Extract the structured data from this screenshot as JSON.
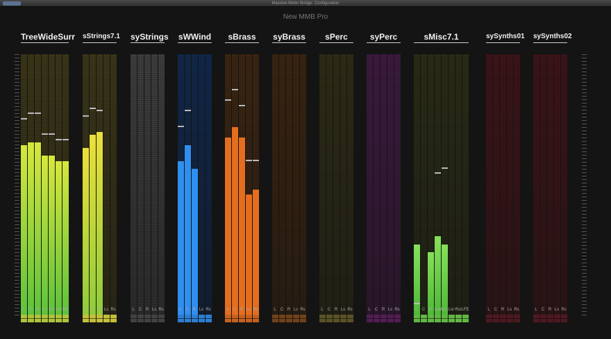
{
  "window": {
    "title": "Massive Meter Bridge: Configuration"
  },
  "app_title": "New MMB Pro",
  "groups": [
    {
      "label": "TreeWideSurr",
      "color": "#c8e040",
      "bgTint": "#3b3618",
      "dim": false,
      "channels": [
        {
          "name": "L",
          "level": 0.65,
          "peak": 0.75
        },
        {
          "name": "C",
          "level": 0.66,
          "peak": 0.77
        },
        {
          "name": "R",
          "level": 0.66,
          "peak": 0.77
        },
        {
          "name": "Ls",
          "level": 0.61,
          "peak": 0.69
        },
        {
          "name": "Rs",
          "level": 0.61,
          "peak": 0.69
        },
        {
          "name": "Lsr",
          "level": 0.59,
          "peak": 0.67
        },
        {
          "name": "Rsr",
          "level": 0.59,
          "peak": 0.67
        }
      ]
    },
    {
      "label": "sStrings7.1",
      "color": "#e3dc3f",
      "bgTint": "#3b3618",
      "dim": false,
      "channels": [
        {
          "name": "L",
          "level": 0.64,
          "peak": 0.76
        },
        {
          "name": "C",
          "level": 0.69,
          "peak": 0.79
        },
        {
          "name": "R",
          "level": 0.7,
          "peak": 0.78
        },
        {
          "name": "Ls",
          "level": 0.0,
          "peak": 0.0
        },
        {
          "name": "Rs",
          "level": 0.0,
          "peak": 0.0
        }
      ]
    },
    {
      "label": "syStrings",
      "color": "#7a7a7a",
      "bgTint": "#3d3d3d",
      "dim": true,
      "channels": [
        {
          "name": "L",
          "level": 0.0,
          "peak": 0.0
        },
        {
          "name": "C",
          "level": 0.0,
          "peak": 0.0
        },
        {
          "name": "R",
          "level": 0.0,
          "peak": 0.0
        },
        {
          "name": "Ls",
          "level": 0.0,
          "peak": 0.0
        },
        {
          "name": "Rs",
          "level": 0.0,
          "peak": 0.0
        }
      ]
    },
    {
      "label": "sWWind",
      "color": "#2f8ff0",
      "bgTint": "#11284a",
      "dim": false,
      "channels": [
        {
          "name": "L",
          "level": 0.59,
          "peak": 0.72
        },
        {
          "name": "C",
          "level": 0.65,
          "peak": 0.78
        },
        {
          "name": "R",
          "level": 0.56,
          "peak": 0.0
        },
        {
          "name": "Ls",
          "level": 0.0,
          "peak": 0.0
        },
        {
          "name": "Rs",
          "level": 0.0,
          "peak": 0.0
        }
      ]
    },
    {
      "label": "sBrass",
      "color": "#e56e1e",
      "bgTint": "#3c2512",
      "dim": false,
      "channels": [
        {
          "name": "L",
          "level": 0.68,
          "peak": 0.82
        },
        {
          "name": "C",
          "level": 0.72,
          "peak": 0.86
        },
        {
          "name": "R",
          "level": 0.68,
          "peak": 0.8
        },
        {
          "name": "Ls",
          "level": 0.46,
          "peak": 0.59
        },
        {
          "name": "Rs",
          "level": 0.48,
          "peak": 0.59
        }
      ]
    },
    {
      "label": "syBrass",
      "color": "#e07a20",
      "bgTint": "#3a2410",
      "dim": true,
      "channels": [
        {
          "name": "L",
          "level": 0.0,
          "peak": 0.0
        },
        {
          "name": "C",
          "level": 0.0,
          "peak": 0.0
        },
        {
          "name": "R",
          "level": 0.0,
          "peak": 0.0
        },
        {
          "name": "Ls",
          "level": 0.0,
          "peak": 0.0
        },
        {
          "name": "Rs",
          "level": 0.0,
          "peak": 0.0
        }
      ]
    },
    {
      "label": "sPerc",
      "color": "#b0a040",
      "bgTint": "#2e2c16",
      "dim": true,
      "channels": [
        {
          "name": "L",
          "level": 0.0,
          "peak": 0.0
        },
        {
          "name": "C",
          "level": 0.0,
          "peak": 0.0
        },
        {
          "name": "R",
          "level": 0.0,
          "peak": 0.0
        },
        {
          "name": "Ls",
          "level": 0.0,
          "peak": 0.0
        },
        {
          "name": "Rs",
          "level": 0.0,
          "peak": 0.0
        }
      ]
    },
    {
      "label": "syPerc",
      "color": "#a02aa0",
      "bgTint": "#3d1a3f",
      "dim": true,
      "channels": [
        {
          "name": "L",
          "level": 0.0,
          "peak": 0.0
        },
        {
          "name": "C",
          "level": 0.0,
          "peak": 0.0
        },
        {
          "name": "R",
          "level": 0.0,
          "peak": 0.0
        },
        {
          "name": "Ls",
          "level": 0.0,
          "peak": 0.0
        },
        {
          "name": "Rs",
          "level": 0.0,
          "peak": 0.0
        }
      ]
    },
    {
      "label": "sMisc7.1",
      "color": "#6ed24a",
      "bgTint": "#2a2c16",
      "dim": false,
      "channels": [
        {
          "name": "L",
          "level": 0.27,
          "peak": 0.04
        },
        {
          "name": "C",
          "level": 0.0,
          "peak": 0.0
        },
        {
          "name": "R",
          "level": 0.24,
          "peak": 0.0
        },
        {
          "name": "Lss",
          "level": 0.3,
          "peak": 0.54
        },
        {
          "name": "Rss",
          "level": 0.27,
          "peak": 0.56
        },
        {
          "name": "Lsr",
          "level": 0.0,
          "peak": 0.0
        },
        {
          "name": "Rsr",
          "level": 0.0,
          "peak": 0.0
        },
        {
          "name": "LFE",
          "level": 0.0,
          "peak": 0.0
        }
      ]
    },
    {
      "label": "sySynths01",
      "color": "#9a2030",
      "bgTint": "#3d1418",
      "dim": true,
      "channels": [
        {
          "name": "L",
          "level": 0.0,
          "peak": 0.0
        },
        {
          "name": "C",
          "level": 0.0,
          "peak": 0.0
        },
        {
          "name": "R",
          "level": 0.0,
          "peak": 0.0
        },
        {
          "name": "Ls",
          "level": 0.0,
          "peak": 0.0
        },
        {
          "name": "Rs",
          "level": 0.0,
          "peak": 0.0
        }
      ]
    },
    {
      "label": "sySynths02",
      "color": "#9a2030",
      "bgTint": "#3d1418",
      "dim": true,
      "channels": [
        {
          "name": "L",
          "level": 0.0,
          "peak": 0.0
        },
        {
          "name": "C",
          "level": 0.0,
          "peak": 0.0
        },
        {
          "name": "R",
          "level": 0.0,
          "peak": 0.0
        },
        {
          "name": "Ls",
          "level": 0.0,
          "peak": 0.0
        },
        {
          "name": "Rs",
          "level": 0.0,
          "peak": 0.0
        }
      ]
    }
  ]
}
